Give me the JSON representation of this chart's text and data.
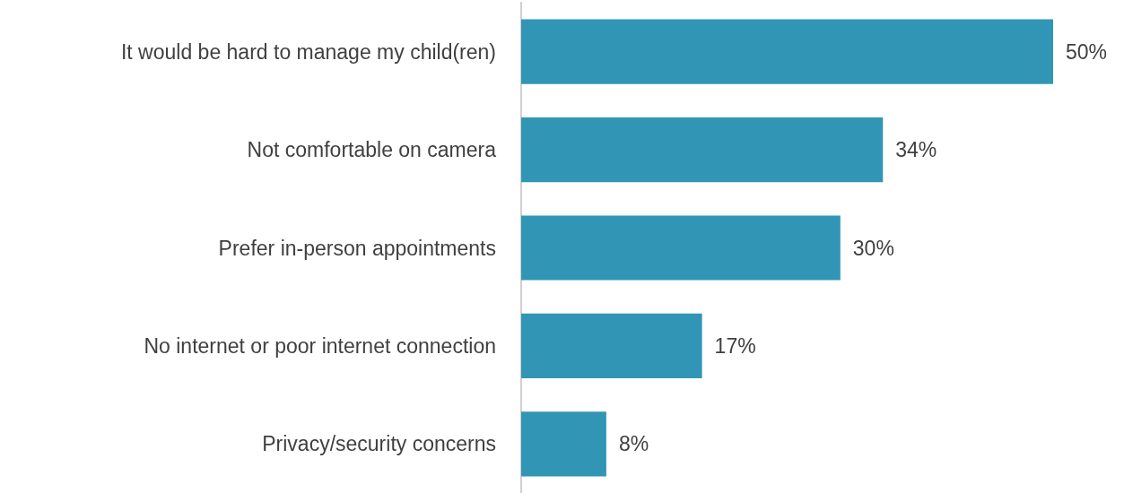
{
  "chart_data": {
    "type": "bar",
    "orientation": "horizontal",
    "categories": [
      "It would be hard to manage my child(ren)",
      "Not comfortable on camera",
      "Prefer in-person appointments",
      "No internet or poor internet connection",
      "Privacy/security concerns"
    ],
    "values": [
      50,
      34,
      30,
      17,
      8
    ],
    "value_labels": [
      "50%",
      "34%",
      "30%",
      "17%",
      "8%"
    ],
    "color": "#3196b5"
  }
}
